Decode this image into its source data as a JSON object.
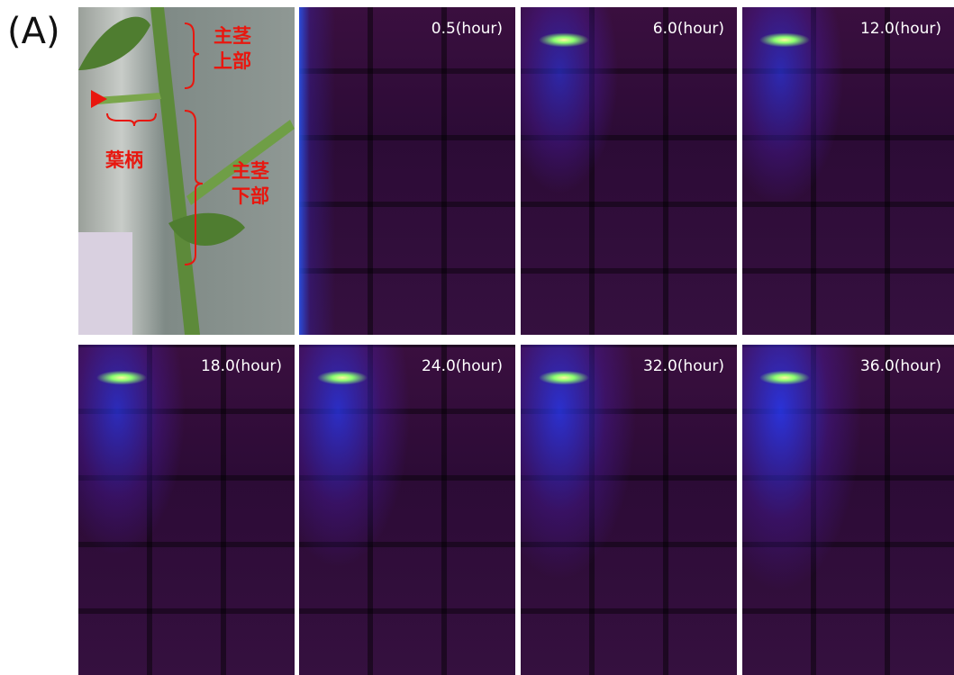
{
  "panel_label": "(A)",
  "photo": {
    "upper_stem": [
      "主茎",
      "上部"
    ],
    "petiole": "葉柄",
    "lower_stem": [
      "主茎",
      "下部"
    ]
  },
  "frames": [
    {
      "time": "0.5(hour)"
    },
    {
      "time": "6.0(hour)"
    },
    {
      "time": "12.0(hour)"
    },
    {
      "time": "18.0(hour)"
    },
    {
      "time": "24.0(hour)"
    },
    {
      "time": "32.0(hour)"
    },
    {
      "time": "36.0(hour)"
    }
  ]
}
